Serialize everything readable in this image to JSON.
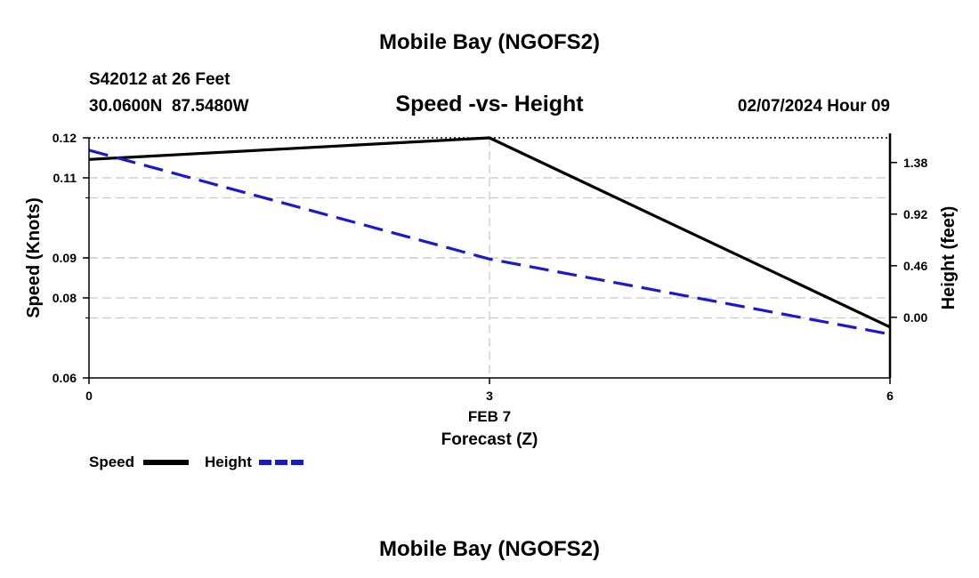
{
  "page": {
    "title": "Mobile Bay (NGOFS2)",
    "footer_title": "Mobile Bay (NGOFS2)",
    "station_line": "S42012 at 26 Feet",
    "coords_line": "30.0600N  87.5480W",
    "timestamp": "02/07/2024 Hour 09"
  },
  "chart_data": {
    "type": "line",
    "title": "Speed -vs- Height",
    "xlabel": "Forecast (Z)",
    "x_date_label": "FEB 7",
    "xlim": [
      0,
      6
    ],
    "x_ticks": [
      0,
      3,
      6
    ],
    "x_tick_labels": [
      "0",
      "3",
      "6"
    ],
    "left_axis": {
      "label": "Speed (Knots)",
      "ylim": [
        0.06,
        0.12
      ],
      "ticks": [
        0.06,
        0.08,
        0.09,
        0.11,
        0.12
      ],
      "tick_labels": [
        "0.06",
        "0.08",
        "0.09",
        "0.11",
        "0.12"
      ],
      "grid_lines": [
        0.105,
        0.09,
        0.075
      ]
    },
    "right_axis": {
      "label": "Height (feet)",
      "ylim": [
        -0.54,
        1.6
      ],
      "ticks": [
        1.38,
        0.92,
        0.46,
        0.0
      ],
      "tick_labels": [
        "1.38",
        "0.92",
        "0.46",
        "0.00"
      ]
    },
    "series": [
      {
        "name": "Speed",
        "axis": "left",
        "color": "#000000",
        "dash": "solid",
        "x": [
          0,
          3,
          6
        ],
        "values": [
          0.1146,
          0.12,
          0.0727
        ]
      },
      {
        "name": "Height",
        "axis": "right",
        "color": "#1a1acc",
        "dash": "dashed",
        "x": [
          0,
          3,
          6
        ],
        "values": [
          1.49,
          0.52,
          -0.15
        ]
      }
    ],
    "grid": true,
    "legend_position": "bottom-left"
  }
}
